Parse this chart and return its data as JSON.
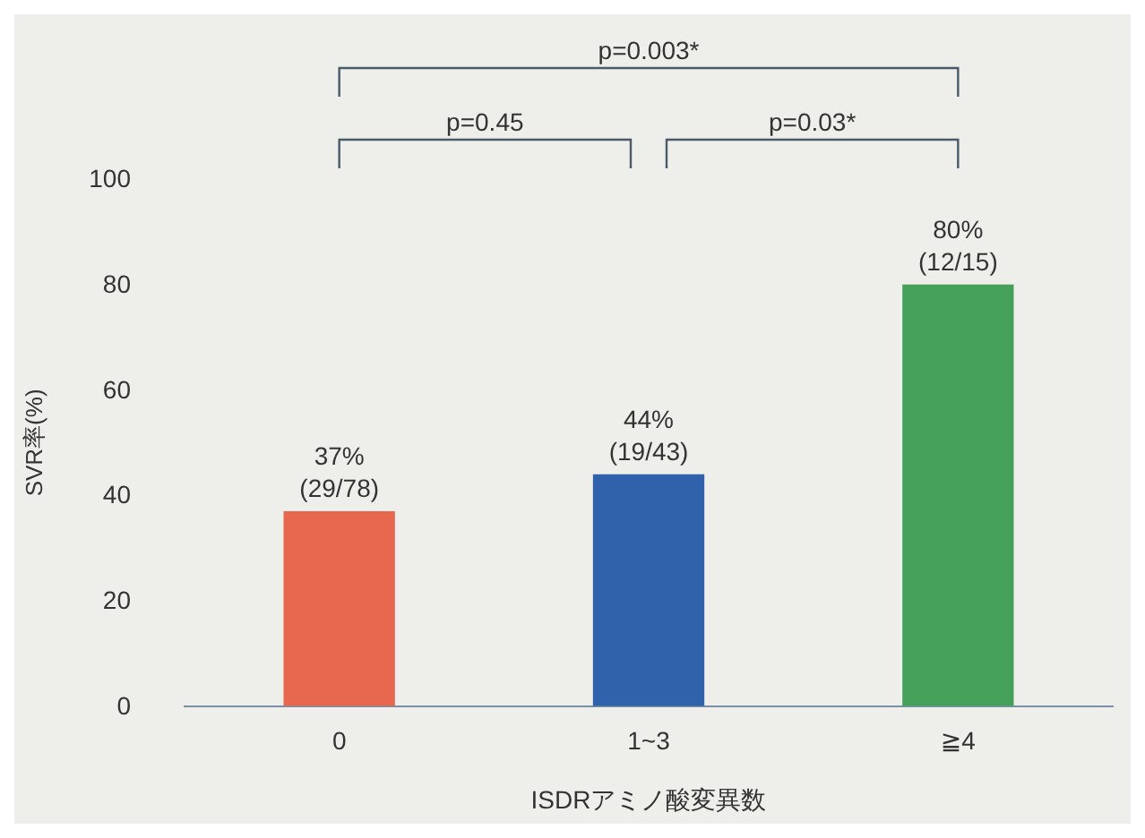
{
  "chart_data": {
    "type": "bar",
    "xlabel": "ISDRアミノ酸変異数",
    "ylabel": "SVR率(%)",
    "categories": [
      "0",
      "1~3",
      "≧4"
    ],
    "values": [
      37,
      44,
      80
    ],
    "colors": [
      "#e8674f",
      "#2f62aa",
      "#45a05a"
    ],
    "value_labels": [
      "37%\n(29/78)",
      "44%\n(19/43)",
      "80%\n(12/15)"
    ],
    "ylim": [
      0,
      100
    ],
    "yticks": [
      0,
      20,
      40,
      60,
      80,
      100
    ],
    "grid": false,
    "legend": false,
    "annotations": [
      "p=0.003*",
      "p=0.45",
      "p=0.03*"
    ]
  }
}
